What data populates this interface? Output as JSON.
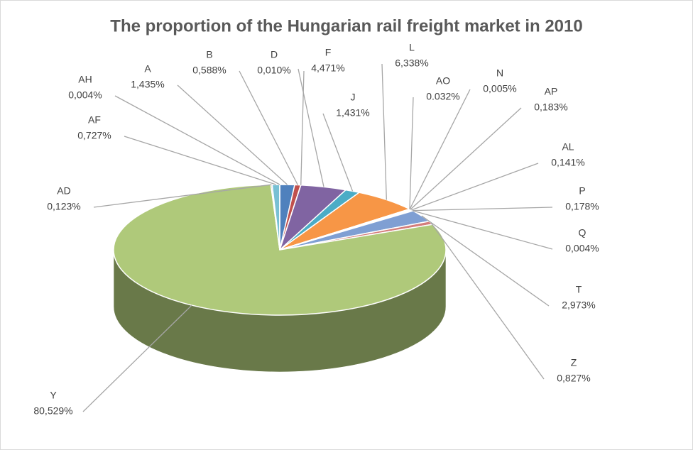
{
  "chart_data": {
    "type": "pie",
    "title": "The proportion of the Hungarian rail freight market in 2010",
    "categories": [
      "A",
      "B",
      "D",
      "F",
      "J",
      "L",
      "AO",
      "N",
      "AP",
      "AL",
      "P",
      "Q",
      "T",
      "Z",
      "Y",
      "AD",
      "AF",
      "AH"
    ],
    "values": [
      1.435,
      0.588,
      0.01,
      4.471,
      1.431,
      6.338,
      0.032,
      0.005,
      0.183,
      0.141,
      0.178,
      0.004,
      2.973,
      0.827,
      80.529,
      0.123,
      0.727,
      0.004
    ],
    "value_labels": [
      "1,435%",
      "0,588%",
      "0,010%",
      "4,471%",
      "1,431%",
      "6,338%",
      "0.032%",
      "0,005%",
      "0,183%",
      "0,141%",
      "0,178%",
      "0,004%",
      "2,973%",
      "0,827%",
      "80,529%",
      "0,123%",
      "0,727%",
      "0,004%"
    ],
    "colors": [
      "#4f81bd",
      "#c0504d",
      "#9bbb59",
      "#8064a2",
      "#4bacc6",
      "#f79646",
      "#4f81bd",
      "#c0504d",
      "#9bbb59",
      "#8064a2",
      "#4bacc6",
      "#f79646",
      "#7f9fd3",
      "#d47d7b",
      "#afc97a",
      "#9983b5",
      "#78c0d4",
      "#f9ac6b"
    ]
  }
}
